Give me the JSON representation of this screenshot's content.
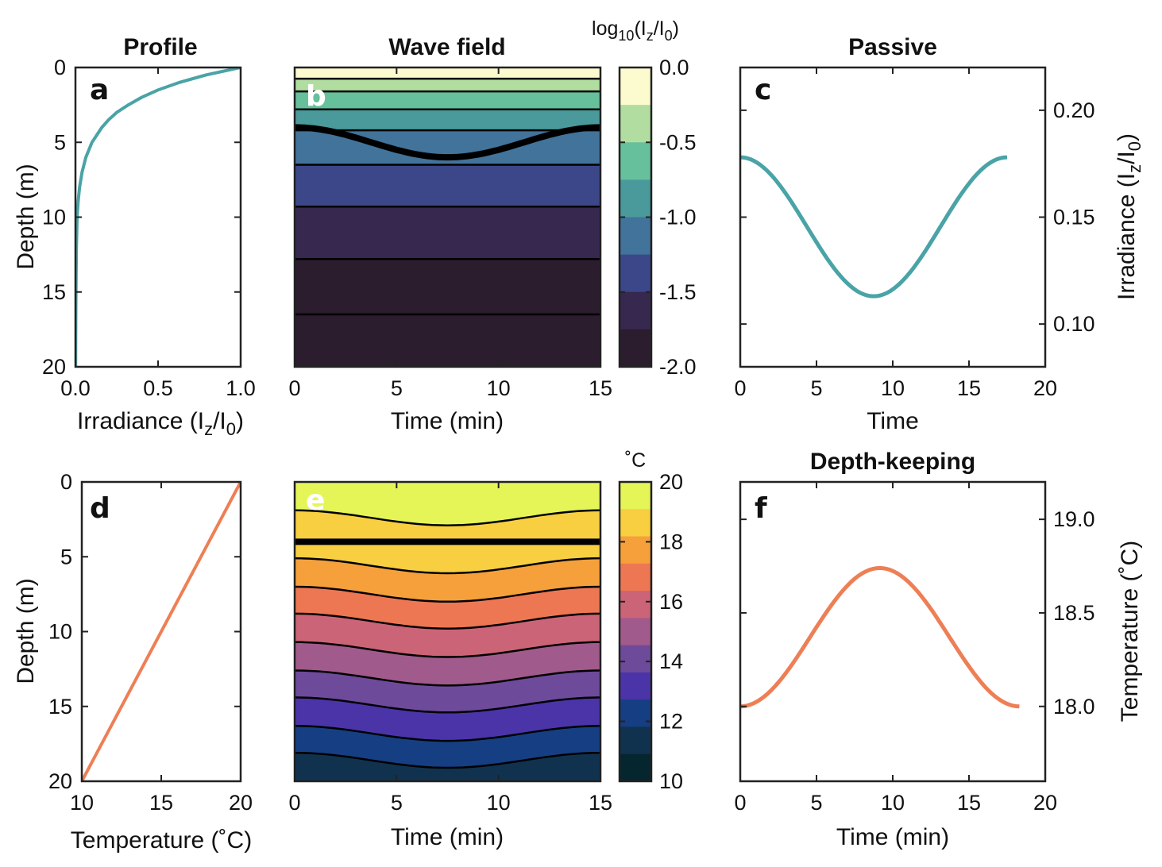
{
  "colors": {
    "teal": "#4aa3a6",
    "orange": "#ee7f55",
    "axis": "#222222",
    "irradiance_levels": [
      "#2b1c2e",
      "#36284e",
      "#3b4789",
      "#42739a",
      "#4a9a9c",
      "#66c09c",
      "#b1dea0",
      "#fcfbcf"
    ],
    "temperature_levels": [
      "#05262e",
      "#11324f",
      "#163e82",
      "#4a34a8",
      "#6e4a9a",
      "#a05a8c",
      "#cc6478",
      "#ed7753",
      "#f6a03b",
      "#f8cf40",
      "#e5f558"
    ]
  },
  "panels": {
    "a": {
      "letter": "a",
      "title": "Profile",
      "xlabel": "Irradiance (I_z/I_0)",
      "ylabel": "Depth (m)"
    },
    "b": {
      "letter": "b",
      "title": "Wave field",
      "xlabel": "Time (min)"
    },
    "c": {
      "letter": "c",
      "title": "Passive",
      "xlabel": "Time",
      "ylabel": "Irradiance (I_z/I_0)"
    },
    "d": {
      "letter": "d",
      "xlabel": "Temperature (˚C)",
      "ylabel": "Depth (m)"
    },
    "e": {
      "letter": "e",
      "xlabel": "Time (min)"
    },
    "f": {
      "letter": "f",
      "title": "Depth-keeping",
      "xlabel": "Time (min)",
      "ylabel": "Temperature (˚C)"
    }
  },
  "colorbars": {
    "top": {
      "title": "log10(Iz/I0)",
      "ticks": [
        "0.0",
        "-0.5",
        "-1.0",
        "-1.5",
        "-2.0"
      ]
    },
    "bottom": {
      "title": "˚C",
      "ticks": [
        "20",
        "18",
        "16",
        "14",
        "12",
        "10"
      ]
    }
  },
  "chart_data": [
    {
      "id": "a",
      "type": "line",
      "title": "Profile",
      "xlabel": "Irradiance (Iz/I0)",
      "ylabel": "Depth (m)",
      "xlim": [
        0,
        1
      ],
      "ylim": [
        0,
        20
      ],
      "y_reversed": true,
      "xticks": [
        "0.0",
        "0.5",
        "1.0"
      ],
      "yticks": [
        "0",
        "5",
        "10",
        "15",
        "20"
      ],
      "series": [
        {
          "x": [
            1.0,
            0.79,
            0.63,
            0.5,
            0.4,
            0.32,
            0.25,
            0.2,
            0.16,
            0.1,
            0.063,
            0.04,
            0.025,
            0.016,
            0.01
          ],
          "y": [
            0,
            0.5,
            1,
            1.5,
            2,
            2.5,
            3,
            3.5,
            4,
            5,
            6,
            7,
            8,
            9,
            10
          ],
          "color": "#4aa3a6"
        },
        {
          "x": [
            0.01,
            0.006,
            0.004,
            0.0025,
            0.0016,
            0.001
          ],
          "y": [
            10,
            12,
            14,
            16,
            18,
            20
          ],
          "color": "#4aa3a6"
        }
      ]
    },
    {
      "id": "b",
      "type": "heatmap",
      "title": "Wave field",
      "xlabel": "Time (min)",
      "xlim": [
        0,
        15
      ],
      "ylim": [
        0,
        20
      ],
      "y_reversed": true,
      "xticks": [
        "0",
        "5",
        "10",
        "15"
      ],
      "contour_depths": [
        0.75,
        1.6,
        2.8,
        4.2,
        6.5,
        9.3,
        12.8,
        16.5
      ],
      "contour_levels": [
        -0.25,
        -0.5,
        -0.75,
        -1.0,
        -1.25,
        -1.5,
        -1.75,
        -2.0
      ],
      "passive_trajectory": {
        "mean_depth": 5.0,
        "amplitude": 1.0,
        "period_min": 15,
        "bold": true
      },
      "colorbar": {
        "label": "log10(Iz/I0)",
        "range": [
          -2.0,
          0.0
        ]
      }
    },
    {
      "id": "c",
      "type": "line",
      "title": "Passive",
      "xlabel": "Time",
      "ylabel": "Irradiance (Iz/I0)",
      "xlim": [
        0,
        20
      ],
      "ylim": [
        0.08,
        0.22
      ],
      "xticks": [
        "0",
        "5",
        "10",
        "15",
        "20"
      ],
      "yticks": [
        "0.10",
        "0.15",
        "0.20"
      ],
      "series": [
        {
          "x": [
            0,
            2.2,
            4.4,
            6.6,
            8.8,
            11,
            13.2,
            15.4,
            17.5
          ],
          "y": [
            0.178,
            0.168,
            0.145,
            0.123,
            0.113,
            0.122,
            0.144,
            0.167,
            0.178
          ],
          "color": "#4aa3a6"
        }
      ]
    },
    {
      "id": "d",
      "type": "line",
      "xlabel": "Temperature (˚C)",
      "ylabel": "Depth (m)",
      "xlim": [
        10,
        20
      ],
      "ylim": [
        0,
        20
      ],
      "y_reversed": true,
      "xticks": [
        "10",
        "15",
        "20"
      ],
      "yticks": [
        "0",
        "5",
        "10",
        "15",
        "20"
      ],
      "series": [
        {
          "x": [
            20,
            10
          ],
          "y": [
            0,
            20
          ],
          "color": "#ee7f55"
        }
      ]
    },
    {
      "id": "e",
      "type": "heatmap",
      "xlabel": "Time (min)",
      "xlim": [
        0,
        15
      ],
      "ylim": [
        0,
        20
      ],
      "y_reversed": true,
      "xticks": [
        "0",
        "5",
        "10",
        "15"
      ],
      "isotherm_mean_depths": [
        2.4,
        5.6,
        7.5,
        9.3,
        11.2,
        13.1,
        14.9,
        16.8,
        18.6
      ],
      "isotherm_amplitude": 0.5,
      "depth_keeping_trajectory": {
        "depth": 4.0,
        "bold": true
      },
      "colorbar": {
        "label": "˚C",
        "range": [
          10,
          20
        ]
      }
    },
    {
      "id": "f",
      "type": "line",
      "title": "Depth-keeping",
      "xlabel": "Time (min)",
      "ylabel": "Temperature (˚C)",
      "xlim": [
        0,
        20
      ],
      "ylim": [
        17.6,
        19.2
      ],
      "xticks": [
        "0",
        "5",
        "10",
        "15",
        "20"
      ],
      "yticks": [
        "18.0",
        "18.5",
        "19.0"
      ],
      "series": [
        {
          "x": [
            0,
            2.3,
            4.6,
            6.9,
            9.2,
            11.5,
            13.8,
            16.1,
            18.3
          ],
          "y": [
            18.0,
            18.1,
            18.37,
            18.63,
            18.74,
            18.63,
            18.37,
            18.1,
            18.0
          ],
          "color": "#ee7f55"
        }
      ]
    }
  ]
}
